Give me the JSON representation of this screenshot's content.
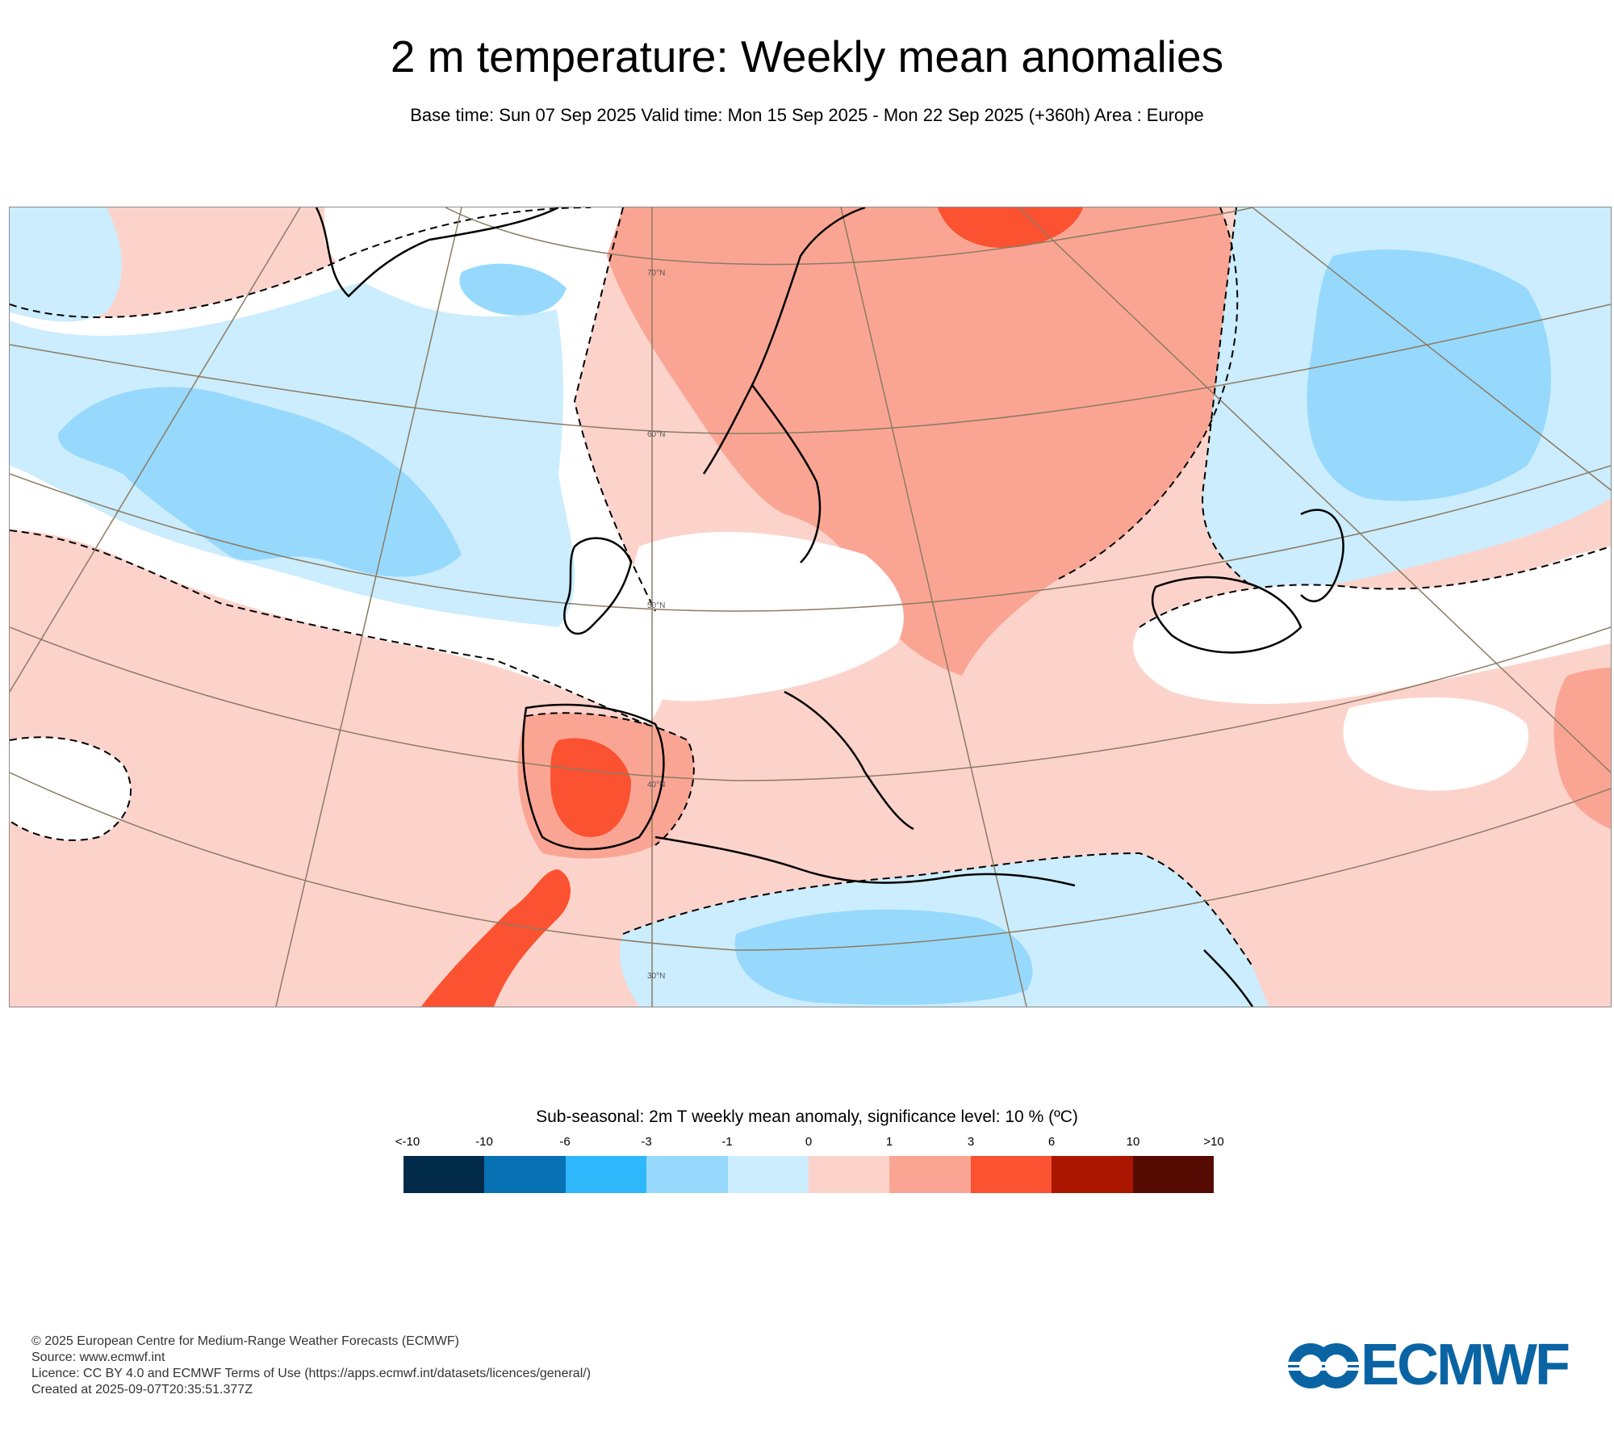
{
  "header": {
    "title": "2 m temperature: Weekly mean anomalies",
    "subtitle": "Base time: Sun 07 Sep 2025 Valid time: Mon 15 Sep 2025 - Mon 22 Sep 2025 (+360h) Area : Europe"
  },
  "map": {
    "lat_labels": [
      "70°N",
      "60°N",
      "50°N",
      "40°N",
      "30°N"
    ],
    "colors": {
      "below_m10": "#022b49",
      "m10_m6": "#0771b3",
      "m6_m3": "#2fb8fb",
      "m3_m1": "#97d9fc",
      "m1_0": "#cbedfd",
      "neutral": "#ffffff",
      "p0_1": "#fcd3cb",
      "p1_3": "#faa594",
      "p3_6": "#fb5232",
      "p6_10": "#aa1600",
      "above_p10": "#560b02",
      "coastline": "#000000",
      "graticule": "#8c7b63"
    }
  },
  "legend": {
    "title": "Sub-seasonal: 2m T weekly mean anomaly, significance level: 10 % (ºC)",
    "labels": [
      "<-10",
      "-10",
      "-6",
      "-3",
      "-1",
      "0",
      "1",
      "3",
      "6",
      "10",
      ">10"
    ],
    "segments": [
      "#022b49",
      "#0771b3",
      "#2fb8fb",
      "#97d9fc",
      "#cbedfd",
      "#fcd3cb",
      "#faa594",
      "#fb5232",
      "#aa1600",
      "#560b02"
    ]
  },
  "footer": {
    "line1": "© 2025 European Centre for Medium-Range Weather Forecasts (ECMWF)",
    "line2": "Source: www.ecmwf.int",
    "line3": "Licence: CC BY 4.0 and ECMWF Terms of Use (https://apps.ecmwf.int/datasets/licences/general/)",
    "line4": "Created at 2025-09-07T20:35:51.377Z"
  },
  "logo": {
    "text": "ECMWF",
    "color": "#0a64a4"
  }
}
